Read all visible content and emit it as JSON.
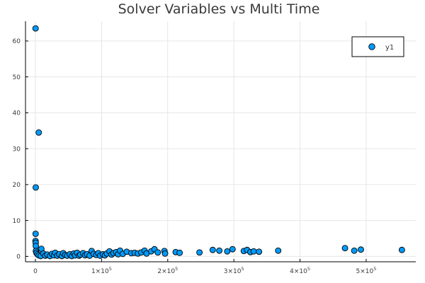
{
  "chart_data": {
    "type": "scatter",
    "title": "Solver Variables vs Multi Time",
    "xlabel": "",
    "ylabel": "",
    "xlim": [
      -15000,
      575000
    ],
    "ylim": [
      -1.5,
      65.5
    ],
    "grid": true,
    "legend_position": "top-right",
    "x_ticks": [
      {
        "value": 0,
        "mantissa": "0",
        "exponent": ""
      },
      {
        "value": 100000,
        "mantissa": "1×10",
        "exponent": "5"
      },
      {
        "value": 200000,
        "mantissa": "2×10",
        "exponent": "5"
      },
      {
        "value": 300000,
        "mantissa": "3×10",
        "exponent": "5"
      },
      {
        "value": 400000,
        "mantissa": "4×10",
        "exponent": "5"
      },
      {
        "value": 500000,
        "mantissa": "5×10",
        "exponent": "5"
      }
    ],
    "y_ticks": [
      0,
      10,
      20,
      30,
      40,
      50,
      60
    ],
    "series": [
      {
        "name": "y1",
        "color": "#009af9",
        "points": [
          [
            200,
            63.5
          ],
          [
            5000,
            34.5
          ],
          [
            500,
            19.2
          ],
          [
            300,
            6.3
          ],
          [
            200,
            4.3
          ],
          [
            400,
            3.8
          ],
          [
            600,
            2.9
          ],
          [
            9000,
            2.1
          ],
          [
            700,
            1.5
          ],
          [
            1500,
            1.0
          ],
          [
            3000,
            0.6
          ],
          [
            5000,
            0.3
          ],
          [
            8000,
            0.1
          ],
          [
            12000,
            0.8
          ],
          [
            15000,
            0.2
          ],
          [
            18000,
            0.5
          ],
          [
            22000,
            0.1
          ],
          [
            25000,
            0.7
          ],
          [
            28000,
            0.3
          ],
          [
            30000,
            1.0
          ],
          [
            33000,
            0.2
          ],
          [
            36000,
            0.6
          ],
          [
            40000,
            0.1
          ],
          [
            42000,
            0.9
          ],
          [
            45000,
            0.4
          ],
          [
            48000,
            0.2
          ],
          [
            52000,
            0.6
          ],
          [
            55000,
            0.1
          ],
          [
            58000,
            0.8
          ],
          [
            60000,
            0.3
          ],
          [
            63000,
            1.0
          ],
          [
            66000,
            0.2
          ],
          [
            68000,
            0.5
          ],
          [
            72000,
            0.9
          ],
          [
            75000,
            0.3
          ],
          [
            78000,
            0.6
          ],
          [
            82000,
            0.2
          ],
          [
            85000,
            1.5
          ],
          [
            88000,
            0.7
          ],
          [
            92000,
            0.4
          ],
          [
            95000,
            0.9
          ],
          [
            98000,
            0.2
          ],
          [
            102000,
            0.6
          ],
          [
            105000,
            0.3
          ],
          [
            108000,
            0.8
          ],
          [
            112000,
            1.4
          ],
          [
            115000,
            0.5
          ],
          [
            118000,
            0.9
          ],
          [
            122000,
            1.2
          ],
          [
            125000,
            0.6
          ],
          [
            128000,
            1.6
          ],
          [
            132000,
            0.7
          ],
          [
            138000,
            1.3
          ],
          [
            145000,
            0.9
          ],
          [
            150000,
            1.0
          ],
          [
            155000,
            0.8
          ],
          [
            160000,
            1.1
          ],
          [
            165000,
            1.6
          ],
          [
            168000,
            0.8
          ],
          [
            175000,
            1.4
          ],
          [
            180000,
            2.0
          ],
          [
            185000,
            1.1
          ],
          [
            195000,
            1.5
          ],
          [
            196000,
            0.8
          ],
          [
            212000,
            1.2
          ],
          [
            218000,
            1.0
          ],
          [
            248000,
            1.1
          ],
          [
            268000,
            1.8
          ],
          [
            278000,
            1.6
          ],
          [
            290000,
            1.4
          ],
          [
            298000,
            2.0
          ],
          [
            315000,
            1.5
          ],
          [
            320000,
            1.8
          ],
          [
            325000,
            1.2
          ],
          [
            330000,
            1.4
          ],
          [
            338000,
            1.3
          ],
          [
            367000,
            1.6
          ],
          [
            468000,
            2.3
          ],
          [
            482000,
            1.6
          ],
          [
            492000,
            1.9
          ],
          [
            554000,
            1.8
          ]
        ]
      }
    ]
  }
}
